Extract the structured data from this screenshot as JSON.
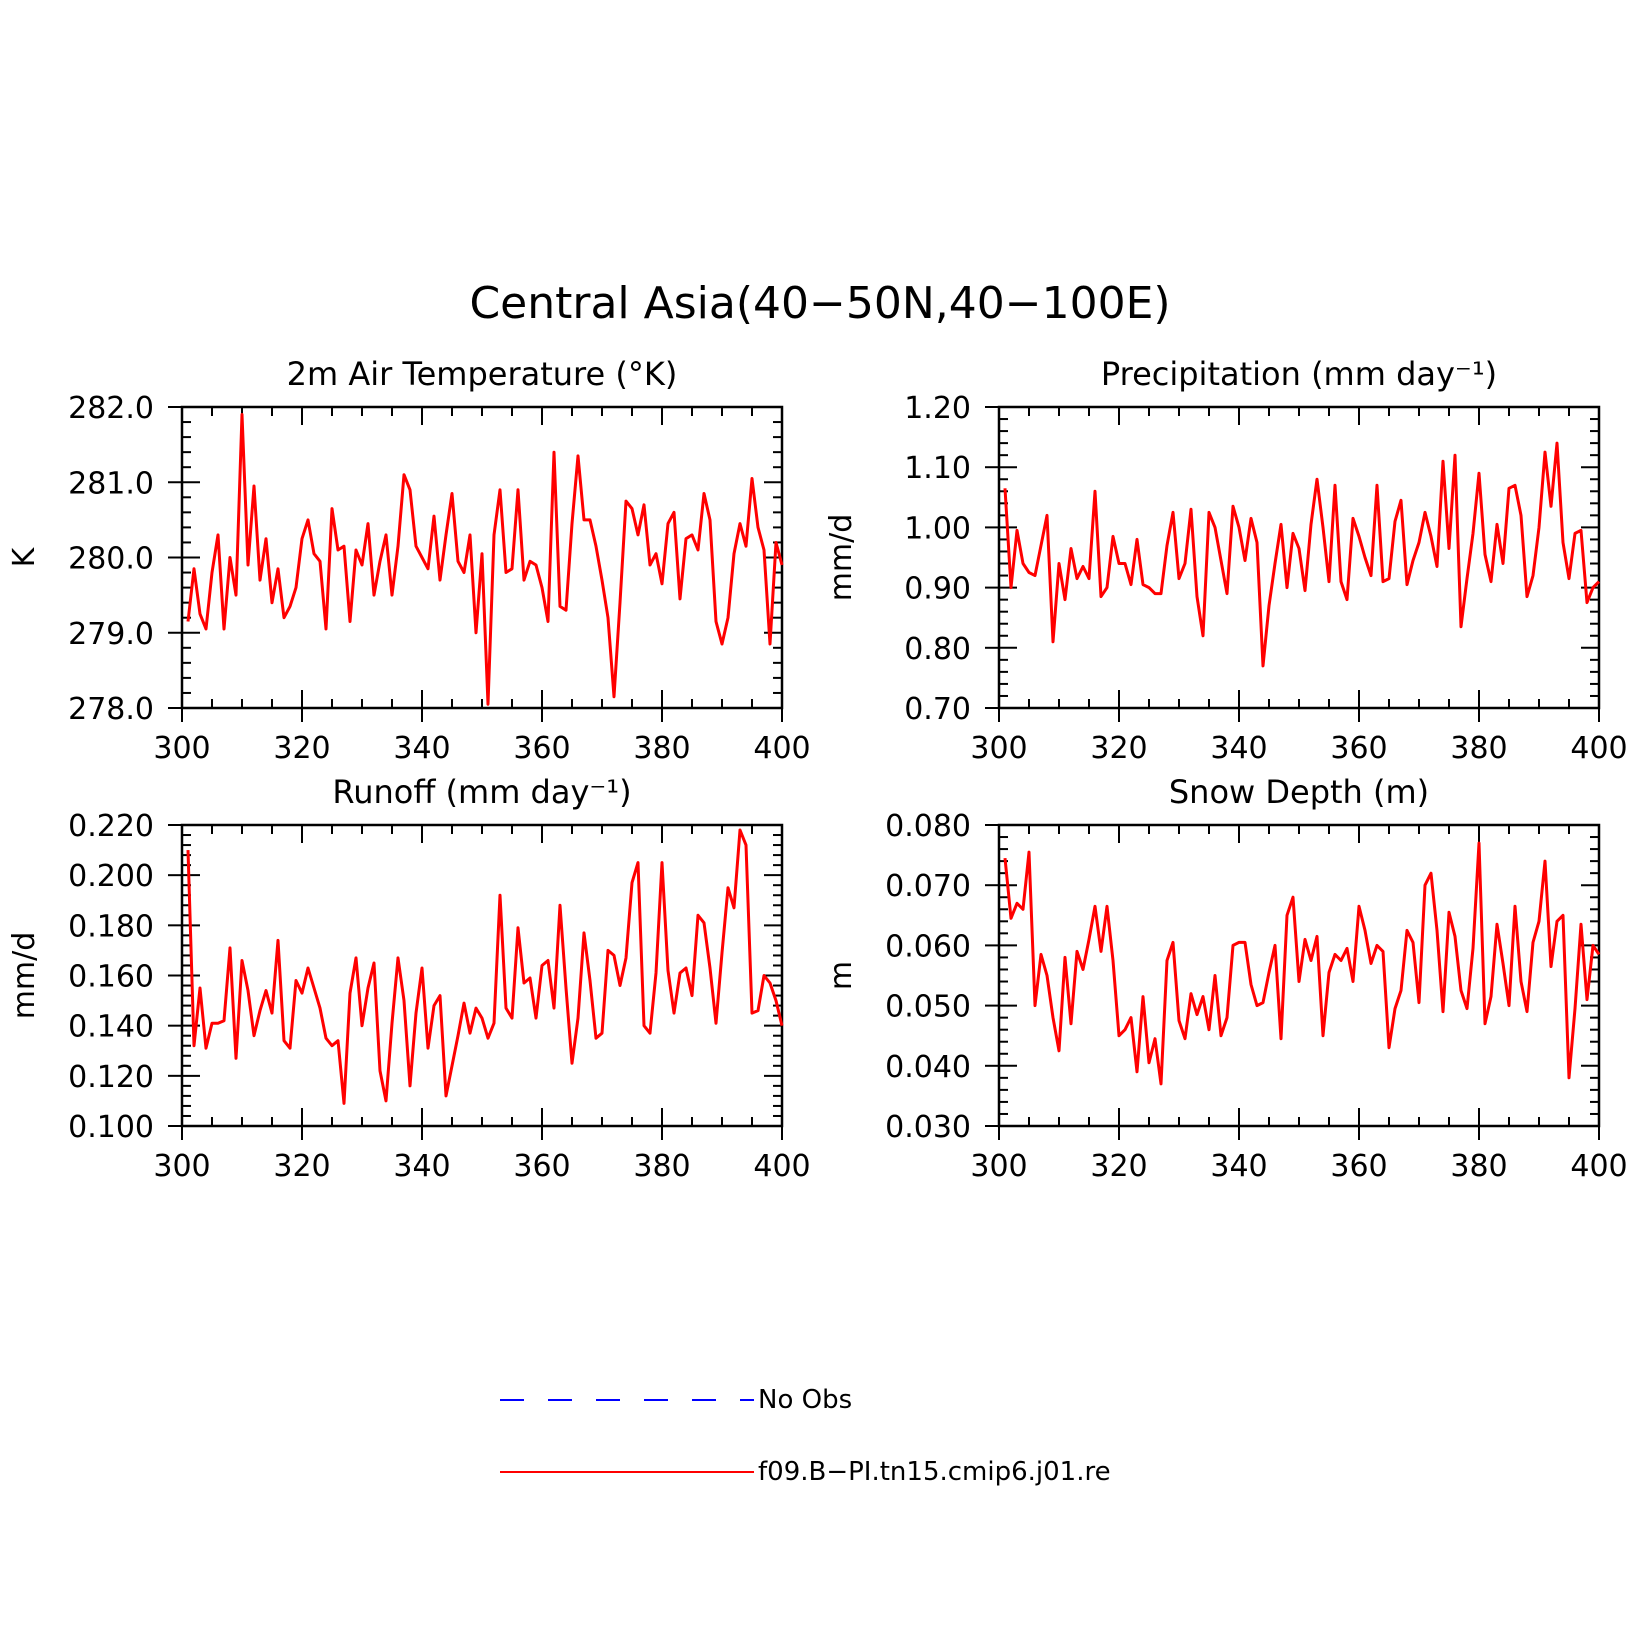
{
  "figure": {
    "title": "Central Asia(40−50N,40−100E)"
  },
  "legend": {
    "entries": [
      {
        "label": "No Obs",
        "color": "#0000ff",
        "style": "dashed"
      },
      {
        "label": "f09.B−PI.tn15.cmip6.j01.re",
        "color": "#ff0000",
        "style": "solid"
      }
    ]
  },
  "chart_data": [
    {
      "type": "line",
      "title": "2m Air Temperature (°K)",
      "ylabel": "K",
      "xlim": [
        300,
        400
      ],
      "ylim": [
        278.0,
        282.0
      ],
      "xticks": [
        300,
        320,
        340,
        360,
        380,
        400
      ],
      "yticks": [
        278.0,
        279.0,
        280.0,
        281.0,
        282.0
      ],
      "ytick_labels": [
        "278.0",
        "279.0",
        "280.0",
        "281.0",
        "282.0"
      ],
      "series": [
        {
          "color": "#ff0000",
          "x_start": 301,
          "values": [
            279.15,
            279.85,
            279.25,
            279.05,
            279.8,
            280.3,
            279.05,
            280.0,
            279.5,
            281.9,
            279.9,
            280.95,
            279.7,
            280.25,
            279.4,
            279.85,
            279.2,
            279.35,
            279.6,
            280.25,
            280.5,
            280.05,
            279.95,
            279.05,
            280.65,
            280.1,
            280.15,
            279.15,
            280.1,
            279.9,
            280.45,
            279.5,
            279.95,
            280.3,
            279.5,
            280.15,
            281.1,
            280.9,
            280.15,
            280.0,
            279.85,
            280.55,
            279.7,
            280.3,
            280.85,
            279.95,
            279.8,
            280.3,
            279.0,
            280.05,
            278.05,
            280.3,
            280.9,
            279.8,
            279.85,
            280.9,
            279.7,
            279.95,
            279.9,
            279.6,
            279.15,
            281.4,
            279.35,
            279.3,
            280.45,
            281.35,
            280.5,
            280.5,
            280.15,
            279.7,
            279.2,
            278.15,
            279.4,
            280.75,
            280.65,
            280.3,
            280.7,
            279.9,
            280.05,
            279.65,
            280.45,
            280.6,
            279.45,
            280.25,
            280.3,
            280.1,
            280.85,
            280.5,
            279.15,
            278.85,
            279.2,
            280.05,
            280.45,
            280.15,
            281.05,
            280.4,
            280.1,
            278.85,
            280.2,
            279.9
          ]
        }
      ]
    },
    {
      "type": "line",
      "title": "Precipitation (mm day⁻¹)",
      "ylabel": "mm/d",
      "xlim": [
        300,
        400
      ],
      "ylim": [
        0.7,
        1.2
      ],
      "xticks": [
        300,
        320,
        340,
        360,
        380,
        400
      ],
      "yticks": [
        0.7,
        0.8,
        0.9,
        1.0,
        1.1,
        1.2
      ],
      "ytick_labels": [
        "0.70",
        "0.80",
        "0.90",
        "1.00",
        "1.10",
        "1.20"
      ],
      "series": [
        {
          "color": "#ff0000",
          "x_start": 301,
          "values": [
            1.065,
            0.9,
            0.995,
            0.94,
            0.925,
            0.92,
            0.97,
            1.02,
            0.81,
            0.94,
            0.88,
            0.965,
            0.915,
            0.935,
            0.915,
            1.06,
            0.885,
            0.9,
            0.985,
            0.94,
            0.94,
            0.905,
            0.98,
            0.905,
            0.9,
            0.89,
            0.89,
            0.97,
            1.025,
            0.915,
            0.94,
            1.03,
            0.885,
            0.82,
            1.025,
            1.0,
            0.945,
            0.89,
            1.035,
            1.0,
            0.945,
            1.015,
            0.975,
            0.77,
            0.87,
            0.94,
            1.005,
            0.9,
            0.99,
            0.965,
            0.895,
            1.005,
            1.08,
            1.0,
            0.91,
            1.07,
            0.91,
            0.88,
            1.015,
            0.985,
            0.95,
            0.92,
            1.07,
            0.91,
            0.915,
            1.01,
            1.045,
            0.905,
            0.945,
            0.975,
            1.025,
            0.985,
            0.935,
            1.11,
            0.965,
            1.12,
            0.835,
            0.915,
            0.99,
            1.09,
            0.955,
            0.91,
            1.005,
            0.94,
            1.065,
            1.07,
            1.02,
            0.885,
            0.92,
            1.0,
            1.125,
            1.035,
            1.14,
            0.975,
            0.915,
            0.99,
            0.995,
            0.875,
            0.9,
            0.91
          ]
        }
      ]
    },
    {
      "type": "line",
      "title": "Runoff (mm day⁻¹)",
      "ylabel": "mm/d",
      "xlim": [
        300,
        400
      ],
      "ylim": [
        0.1,
        0.22
      ],
      "xticks": [
        300,
        320,
        340,
        360,
        380,
        400
      ],
      "yticks": [
        0.1,
        0.12,
        0.14,
        0.16,
        0.18,
        0.2,
        0.22
      ],
      "ytick_labels": [
        "0.100",
        "0.120",
        "0.140",
        "0.160",
        "0.180",
        "0.200",
        "0.220"
      ],
      "series": [
        {
          "color": "#ff0000",
          "x_start": 301,
          "values": [
            0.21,
            0.132,
            0.155,
            0.131,
            0.141,
            0.141,
            0.142,
            0.171,
            0.127,
            0.166,
            0.154,
            0.136,
            0.146,
            0.154,
            0.145,
            0.174,
            0.134,
            0.131,
            0.158,
            0.153,
            0.163,
            0.155,
            0.147,
            0.135,
            0.132,
            0.134,
            0.109,
            0.153,
            0.167,
            0.14,
            0.155,
            0.165,
            0.122,
            0.11,
            0.141,
            0.167,
            0.15,
            0.116,
            0.145,
            0.163,
            0.131,
            0.148,
            0.152,
            0.112,
            0.124,
            0.136,
            0.149,
            0.137,
            0.147,
            0.143,
            0.135,
            0.141,
            0.192,
            0.147,
            0.143,
            0.179,
            0.157,
            0.159,
            0.143,
            0.164,
            0.166,
            0.147,
            0.188,
            0.155,
            0.125,
            0.143,
            0.177,
            0.158,
            0.135,
            0.137,
            0.17,
            0.168,
            0.156,
            0.167,
            0.197,
            0.205,
            0.14,
            0.137,
            0.161,
            0.205,
            0.162,
            0.145,
            0.161,
            0.163,
            0.152,
            0.184,
            0.181,
            0.163,
            0.141,
            0.169,
            0.195,
            0.187,
            0.218,
            0.212,
            0.145,
            0.146,
            0.16,
            0.157,
            0.15,
            0.14
          ]
        }
      ]
    },
    {
      "type": "line",
      "title": "Snow Depth (m)",
      "ylabel": "m",
      "xlim": [
        300,
        400
      ],
      "ylim": [
        0.03,
        0.08
      ],
      "xticks": [
        300,
        320,
        340,
        360,
        380,
        400
      ],
      "yticks": [
        0.03,
        0.04,
        0.05,
        0.06,
        0.07,
        0.08
      ],
      "ytick_labels": [
        "0.030",
        "0.040",
        "0.050",
        "0.060",
        "0.070",
        "0.080"
      ],
      "series": [
        {
          "color": "#ff0000",
          "x_start": 301,
          "values": [
            0.0745,
            0.0645,
            0.067,
            0.066,
            0.0755,
            0.05,
            0.0585,
            0.055,
            0.048,
            0.0425,
            0.058,
            0.047,
            0.059,
            0.056,
            0.061,
            0.0665,
            0.059,
            0.0665,
            0.0575,
            0.045,
            0.046,
            0.048,
            0.039,
            0.0515,
            0.0405,
            0.0445,
            0.037,
            0.0575,
            0.0605,
            0.0475,
            0.0445,
            0.052,
            0.0485,
            0.0515,
            0.046,
            0.055,
            0.045,
            0.048,
            0.06,
            0.0605,
            0.0605,
            0.0535,
            0.05,
            0.0505,
            0.0555,
            0.06,
            0.0445,
            0.065,
            0.068,
            0.054,
            0.061,
            0.0575,
            0.0615,
            0.045,
            0.0555,
            0.0585,
            0.0575,
            0.0595,
            0.054,
            0.0665,
            0.0625,
            0.057,
            0.06,
            0.059,
            0.043,
            0.0495,
            0.0525,
            0.0625,
            0.0605,
            0.0505,
            0.07,
            0.072,
            0.0625,
            0.049,
            0.0655,
            0.0615,
            0.0525,
            0.0495,
            0.0595,
            0.077,
            0.047,
            0.0515,
            0.0635,
            0.057,
            0.05,
            0.0665,
            0.054,
            0.049,
            0.0605,
            0.064,
            0.074,
            0.0565,
            0.064,
            0.065,
            0.038,
            0.0495,
            0.0635,
            0.051,
            0.06,
            0.0585
          ]
        }
      ]
    }
  ]
}
